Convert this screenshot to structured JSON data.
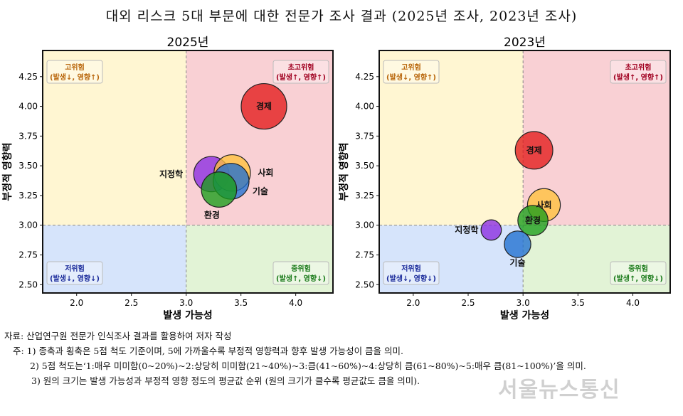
{
  "title": "대외 리스크 5대 부문에 대한 전문가 조사 결과 (2025년 조사, 2023년 조사)",
  "chart_data": [
    {
      "type": "scatter",
      "title": "2025년",
      "xlabel": "발생 가능성",
      "ylabel": "부정적 영향력",
      "xlim": [
        1.69,
        4.34
      ],
      "ylim": [
        2.43,
        4.47
      ],
      "xticks": [
        "2.0",
        "2.5",
        "3.0",
        "3.5",
        "4.0"
      ],
      "yticks": [
        "2.50",
        "2.75",
        "3.00",
        "3.25",
        "3.50",
        "3.75",
        "4.00",
        "4.25"
      ],
      "threshold": {
        "x": 3.0,
        "y": 3.0
      },
      "points": [
        {
          "name": "경제",
          "x": 3.71,
          "y": 4.0,
          "size": 5,
          "color": "#e31a1a"
        },
        {
          "name": "지정학",
          "x": 3.23,
          "y": 3.43,
          "size": 3,
          "color": "#8a2be2"
        },
        {
          "name": "사회",
          "x": 3.42,
          "y": 3.44,
          "size": 3.2,
          "color": "#ffc13b"
        },
        {
          "name": "기술",
          "x": 3.41,
          "y": 3.37,
          "size": 3.1,
          "color": "#1f6fd1"
        },
        {
          "name": "환경",
          "x": 3.3,
          "y": 3.3,
          "size": 3,
          "color": "#1a9e1a"
        }
      ]
    },
    {
      "type": "scatter",
      "title": "2023년",
      "xlabel": "발생 가능성",
      "ylabel": "부정적 영향력",
      "xlim": [
        1.69,
        4.34
      ],
      "ylim": [
        2.43,
        4.47
      ],
      "xticks": [
        "2.0",
        "2.5",
        "3.0",
        "3.5",
        "4.0"
      ],
      "yticks": [
        "2.50",
        "2.75",
        "3.00",
        "3.25",
        "3.50",
        "3.75",
        "4.00",
        "4.25"
      ],
      "threshold": {
        "x": 3.0,
        "y": 3.0
      },
      "points": [
        {
          "name": "경제",
          "x": 3.1,
          "y": 3.63,
          "size": 3.4,
          "color": "#e31a1a"
        },
        {
          "name": "사회",
          "x": 3.19,
          "y": 3.17,
          "size": 2.6,
          "color": "#ffc13b"
        },
        {
          "name": "환경",
          "x": 3.09,
          "y": 3.04,
          "size": 2.2,
          "color": "#1a9e1a"
        },
        {
          "name": "지정학",
          "x": 2.71,
          "y": 2.96,
          "size": 1,
          "color": "#8a2be2"
        },
        {
          "name": "기술",
          "x": 2.95,
          "y": 2.84,
          "size": 1.7,
          "color": "#1f6fd1"
        }
      ]
    }
  ],
  "quadrants": {
    "top_left": {
      "title": "고위험",
      "sub": "(발생↓, 영향↑)",
      "color": "#b8650a",
      "bg": "#fff6d2"
    },
    "top_right": {
      "title": "초고위험",
      "sub": "(발생↑, 영향↑)",
      "color": "#a00020",
      "bg": "#f9d0d4"
    },
    "bottom_left": {
      "title": "저위험",
      "sub": "(발생↓, 영향↓)",
      "color": "#1a2a9a",
      "bg": "#d6e4fb"
    },
    "bottom_right": {
      "title": "중위험",
      "sub": "(발생↑, 영향↓)",
      "color": "#1a7a1a",
      "bg": "#e2f3d6"
    }
  },
  "notes": {
    "source": "자료: 산업연구원 전문가 인식조사 결과를 활용하여 저자 작성",
    "note1": "주: 1) 종축과 횡축은 5점 척도 기준이며, 5에 가까울수록 부정적 영향력과 향후 발생 가능성이 큼을 의미.",
    "note2": "2) 5점 척도는‘1:매우 미미함(0~20%)~2:상당히 미미함(21~40%)~3:큼(41~60%)~4:상당히 큼(61~80%)~5:매우 큼(81~100%)’을 의미.",
    "note3": "3) 원의 크기는 발생 가능성과 부정적 영향 정도의 평균값 순위 (원의 크기가 클수록 평균값도 큼을 의미)."
  },
  "watermark": "서울뉴스통신"
}
